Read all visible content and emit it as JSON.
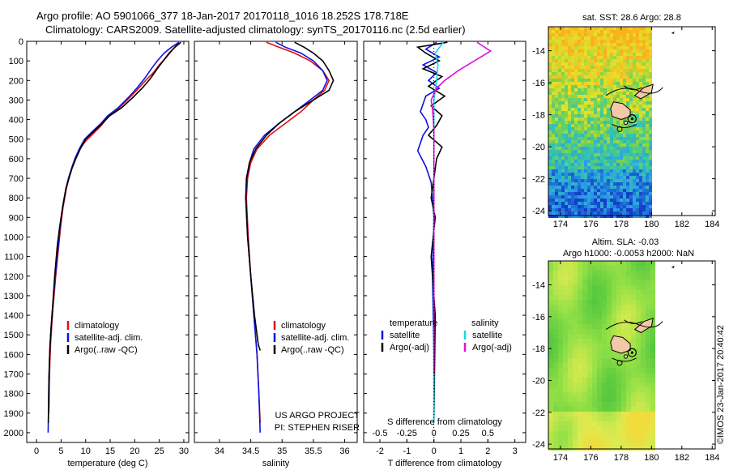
{
  "header": {
    "line1": "Argo profile: AO 5901066_377 18-Jan-2017 20170118_1016 18.252S 178.718E",
    "line2": "Climatology: CARS2009. Satellite-adjusted climatology: synTS_20170116.nc (2.5d earlier)"
  },
  "chart_data": [
    {
      "type": "line",
      "id": "temperature",
      "xlabel": "temperature (deg C)",
      "ylabel": "",
      "xlim": [
        -2,
        31
      ],
      "ylim": [
        2050,
        0
      ],
      "xticks": [
        0,
        5,
        10,
        15,
        20,
        25,
        30
      ],
      "yticks": [
        0,
        100,
        200,
        300,
        400,
        500,
        600,
        700,
        800,
        900,
        1000,
        1100,
        1200,
        1300,
        1400,
        1500,
        1600,
        1700,
        1800,
        1900,
        2000
      ],
      "legend": {
        "position": "lower-center",
        "entries": [
          "climatology",
          "satellite-adj. clim.",
          "Argo(..raw -QC)"
        ]
      },
      "series": [
        {
          "name": "climatology",
          "color": "#e01010",
          "x": [
            29,
            27.8,
            26.5,
            25,
            23.8,
            22.2,
            20.4,
            18.5,
            16.4,
            14.4,
            13.2,
            11.6,
            10,
            8.8,
            7.9,
            7.2,
            6.6,
            6.1,
            5.4,
            4.9,
            4.5,
            3.9,
            3.4,
            3.1,
            2.85,
            2.7,
            2.6,
            2.55,
            2.5
          ],
          "y": [
            5,
            40,
            80,
            120,
            160,
            200,
            250,
            300,
            350,
            390,
            430,
            470,
            510,
            550,
            600,
            650,
            700,
            750,
            850,
            950,
            1050,
            1200,
            1350,
            1450,
            1550,
            1650,
            1750,
            1850,
            1900
          ]
        },
        {
          "name": "satellite-adj. clim.",
          "color": "#1010e0",
          "x": [
            29,
            27.5,
            26,
            24.6,
            23.4,
            22,
            20.4,
            18.6,
            16.6,
            14.5,
            13.1,
            11.4,
            9.8,
            8.7,
            7.8,
            7.1,
            6.5,
            6,
            5.3,
            4.8,
            4.4,
            3.8,
            3.3,
            3,
            2.75,
            2.6,
            2.5,
            2.45,
            2.35
          ],
          "y": [
            5,
            30,
            60,
            100,
            140,
            190,
            240,
            290,
            340,
            380,
            420,
            460,
            500,
            550,
            600,
            650,
            700,
            750,
            850,
            950,
            1050,
            1200,
            1350,
            1450,
            1550,
            1650,
            1750,
            1850,
            2000
          ]
        },
        {
          "name": "Argo(..raw -QC)",
          "color": "#000000",
          "x": [
            29.4,
            28.2,
            27,
            25.8,
            24.6,
            23.2,
            21.5,
            19.5,
            17.3,
            14.9,
            13.4,
            11.7,
            10,
            8.9,
            8,
            7.2,
            6.6,
            6,
            5.3,
            4.7,
            4.2,
            3.7,
            3.3,
            3,
            2.75,
            2.6,
            2.5,
            2.45,
            2.4
          ],
          "y": [
            5,
            30,
            60,
            100,
            140,
            190,
            240,
            290,
            340,
            380,
            420,
            460,
            500,
            550,
            600,
            650,
            700,
            750,
            850,
            950,
            1050,
            1200,
            1350,
            1450,
            1550,
            1650,
            1750,
            1850,
            1950
          ]
        }
      ]
    },
    {
      "type": "line",
      "id": "salinity",
      "xlabel": "salinity",
      "xlim": [
        33.6,
        36.2
      ],
      "ylim": [
        2050,
        0
      ],
      "xticks": [
        34,
        34.5,
        35,
        35.5,
        36
      ],
      "legend": {
        "position": "lower-center",
        "entries": [
          "climatology",
          "satellite-adj. clim.",
          "Argo(..raw -QC)"
        ]
      },
      "series": [
        {
          "name": "climatology",
          "color": "#e01010",
          "x": [
            34.75,
            34.95,
            35.2,
            35.45,
            35.65,
            35.75,
            35.68,
            35.5,
            35.3,
            35.05,
            34.8,
            34.6,
            34.5,
            34.45,
            34.43,
            34.46,
            34.5,
            34.55,
            34.6,
            34.63,
            34.65
          ],
          "y": [
            5,
            30,
            60,
            100,
            150,
            200,
            250,
            300,
            360,
            420,
            480,
            550,
            620,
            700,
            800,
            1000,
            1200,
            1400,
            1600,
            1800,
            1950
          ]
        },
        {
          "name": "satellite-adj. clim.",
          "color": "#1010e0",
          "x": [
            34.9,
            35.05,
            35.3,
            35.5,
            35.65,
            35.72,
            35.65,
            35.45,
            35.2,
            34.95,
            34.72,
            34.55,
            34.48,
            34.44,
            34.42,
            34.45,
            34.5,
            34.55,
            34.6,
            34.63,
            34.65
          ],
          "y": [
            5,
            30,
            60,
            100,
            150,
            200,
            250,
            300,
            360,
            420,
            480,
            550,
            620,
            700,
            800,
            1000,
            1200,
            1400,
            1600,
            1800,
            2000
          ]
        },
        {
          "name": "Argo(..raw -QC)",
          "color": "#000000",
          "x": [
            35.2,
            35.35,
            35.5,
            35.65,
            35.75,
            35.82,
            35.75,
            35.5,
            35.2,
            34.95,
            34.75,
            34.58,
            34.48,
            34.43,
            34.42,
            34.45,
            34.5,
            34.56,
            34.62,
            34.65
          ],
          "y": [
            5,
            30,
            60,
            100,
            150,
            200,
            250,
            300,
            360,
            420,
            480,
            550,
            620,
            700,
            800,
            1000,
            1200,
            1400,
            1550,
            1580
          ]
        }
      ]
    },
    {
      "type": "line",
      "id": "difference",
      "xlabel": "T difference from climatology",
      "xlabel2": "S difference from climatology",
      "xlim": [
        -2.6,
        3.4
      ],
      "ylim": [
        2050,
        0
      ],
      "xticks": [
        -2,
        -1,
        0,
        1,
        2,
        3
      ],
      "xticks2": [
        -0.5,
        -0.25,
        0,
        0.25,
        0.5
      ],
      "legend": {
        "position": "lower-center",
        "temperature_title": "temperature",
        "salinity_title": "salinity",
        "entries": [
          "satellite",
          "Argo(-adj)",
          "satellite",
          "Argo(-adj)"
        ]
      },
      "series": [
        {
          "name": "temperature satellite",
          "color": "#1010e0",
          "x": [
            0.1,
            -0.3,
            0.2,
            -0.4,
            0.1,
            -0.2,
            0.2,
            -0.3,
            -0.4,
            -0.5,
            -0.3,
            -0.2,
            -0.4,
            -0.6,
            -0.3,
            -0.1,
            0,
            -0.05,
            0,
            0
          ],
          "y": [
            5,
            40,
            80,
            120,
            160,
            200,
            240,
            280,
            320,
            360,
            400,
            440,
            480,
            560,
            640,
            720,
            900,
            1200,
            1600,
            1950
          ]
        },
        {
          "name": "temperature Argo(-adj)",
          "color": "#000000",
          "x": [
            0.5,
            -0.6,
            -0.3,
            0.2,
            -0.4,
            0.3,
            -0.2,
            0.4,
            -0.1,
            0.3,
            0.1,
            -0.2,
            0.3,
            0.1,
            0,
            -0.1,
            0.05,
            -0.1,
            0.05,
            0
          ],
          "y": [
            5,
            30,
            60,
            100,
            140,
            180,
            230,
            280,
            330,
            380,
            430,
            480,
            540,
            600,
            700,
            800,
            900,
            1100,
            1400,
            1950
          ]
        },
        {
          "name": "salinity satellite",
          "color": "#10d8e8",
          "x": [
            0.35,
            0.05,
            0.15,
            0.1,
            0,
            0,
            0,
            0,
            0,
            0,
            0,
            0,
            0
          ],
          "y": [
            5,
            60,
            120,
            200,
            300,
            400,
            500,
            700,
            900,
            1100,
            1400,
            1700,
            1950
          ]
        },
        {
          "name": "salinity Argo(-adj)",
          "color": "#e010e0",
          "x": [
            1.6,
            2.1,
            1.5,
            0.9,
            0.4,
            0.1,
            -0.1,
            -0.05,
            0,
            0,
            0,
            0,
            0
          ],
          "y": [
            5,
            50,
            100,
            150,
            200,
            240,
            300,
            350,
            450,
            600,
            900,
            1300,
            1700
          ]
        }
      ],
      "annotations": [
        "US ARGO PROJECT",
        "PI: STEPHEN RISER"
      ]
    },
    {
      "type": "heatmap",
      "id": "sst-map",
      "title": "sat. SST: 28.6 Argo: 28.8",
      "xlim": [
        173.2,
        184.2
      ],
      "ylim": [
        -24.3,
        -12.5
      ],
      "xticks": [
        174,
        176,
        178,
        180,
        182,
        184
      ],
      "yticks": [
        -14,
        -16,
        -18,
        -20,
        -22,
        -24
      ],
      "profile_location": [
        178.718,
        -18.252
      ]
    },
    {
      "type": "heatmap",
      "id": "sla-map",
      "title": "Altim. SLA: -0.03",
      "subtitle": "Argo h1000: -0.0053 h2000: NaN",
      "xlim": [
        173.2,
        184.2
      ],
      "ylim": [
        -24.3,
        -12.5
      ],
      "xticks": [
        174,
        176,
        178,
        180,
        182,
        184
      ],
      "yticks": [
        -14,
        -16,
        -18,
        -20,
        -22,
        -24
      ],
      "profile_location": [
        178.718,
        -18.252
      ]
    }
  ],
  "footer": {
    "credit": "©IMOS 23-Jan-2017 20:40:42"
  }
}
